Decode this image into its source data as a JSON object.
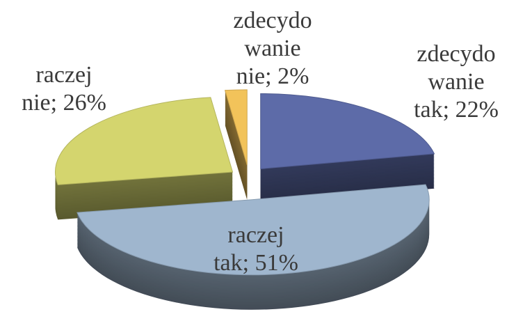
{
  "chart_data": {
    "type": "pie",
    "categories": [
      "zdecydowanie tak",
      "raczej tak",
      "raczej nie",
      "zdecydowanie nie"
    ],
    "values": [
      22,
      51,
      26,
      2
    ],
    "value_labels": [
      "zdecydowanie tak; 22%",
      "raczej tak; 51%",
      "raczej nie; 26%",
      "zdecydowanie nie; 2%"
    ],
    "colors": [
      "#5d6ba8",
      "#9fb6ce",
      "#d4d56e",
      "#f2c35a"
    ]
  }
}
